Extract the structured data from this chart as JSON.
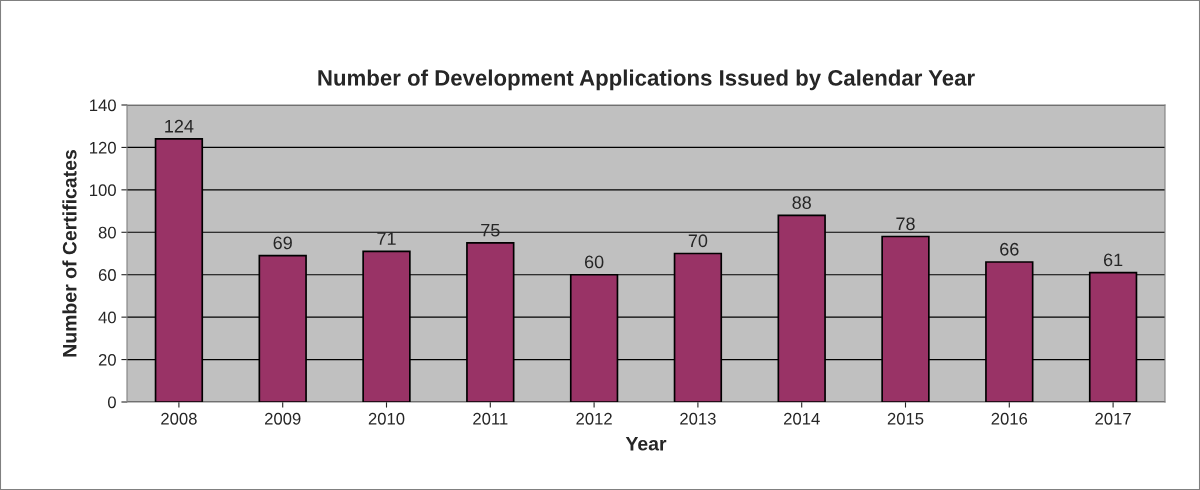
{
  "chart_data": {
    "type": "bar",
    "title": "Number of Development Applications Issued by Calendar Year",
    "xlabel": "Year",
    "ylabel": "Number of Certificates",
    "categories": [
      "2008",
      "2009",
      "2010",
      "2011",
      "2012",
      "2013",
      "2014",
      "2015",
      "2016",
      "2017"
    ],
    "values": [
      124,
      69,
      71,
      75,
      60,
      70,
      88,
      78,
      66,
      61
    ],
    "color": "#993366",
    "ylim": [
      0,
      140
    ],
    "yticks": [
      0,
      20,
      40,
      60,
      80,
      100,
      120,
      140
    ],
    "grid": "y",
    "data_labels": true,
    "legend": false
  }
}
